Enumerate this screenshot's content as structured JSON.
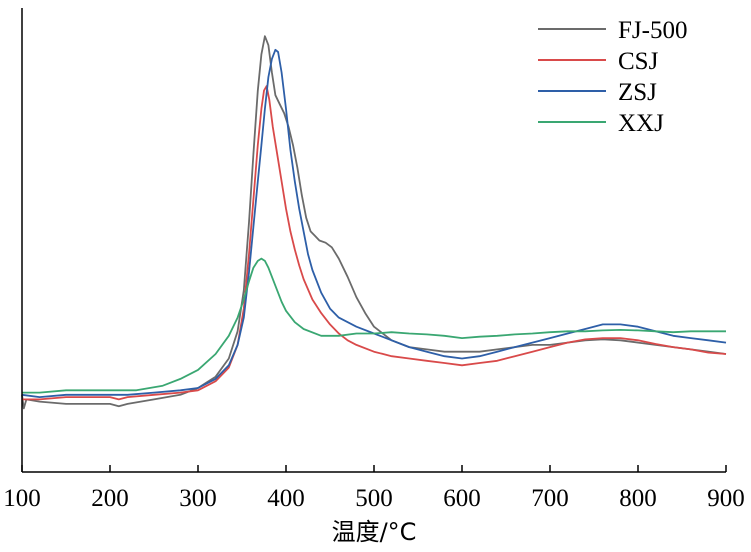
{
  "chart_data": {
    "type": "line",
    "title": "",
    "xlabel": "温度/°C",
    "ylabel": "",
    "xlim": [
      100,
      900
    ],
    "ylim": [
      0,
      100
    ],
    "x_ticks": [
      "100",
      "200",
      "300",
      "400",
      "500",
      "600",
      "700",
      "800",
      "900"
    ],
    "y_ticks_shown": false,
    "grid": false,
    "legend_position": "top-right",
    "series": [
      {
        "name": "FJ-500",
        "color": "#6b6b6b",
        "points": [
          [
            100,
            17
          ],
          [
            102,
            14
          ],
          [
            105,
            16
          ],
          [
            120,
            15.5
          ],
          [
            150,
            15
          ],
          [
            200,
            15
          ],
          [
            210,
            14.5
          ],
          [
            220,
            15
          ],
          [
            250,
            16
          ],
          [
            280,
            17
          ],
          [
            300,
            18.5
          ],
          [
            320,
            21
          ],
          [
            335,
            25
          ],
          [
            345,
            31
          ],
          [
            352,
            40
          ],
          [
            358,
            55
          ],
          [
            363,
            70
          ],
          [
            368,
            84
          ],
          [
            372,
            92
          ],
          [
            376,
            96
          ],
          [
            380,
            94
          ],
          [
            384,
            88
          ],
          [
            388,
            83
          ],
          [
            393,
            81
          ],
          [
            398,
            79
          ],
          [
            403,
            76
          ],
          [
            408,
            72
          ],
          [
            413,
            67
          ],
          [
            418,
            61
          ],
          [
            423,
            56
          ],
          [
            428,
            53
          ],
          [
            433,
            52
          ],
          [
            438,
            51
          ],
          [
            445,
            50.5
          ],
          [
            452,
            49.5
          ],
          [
            460,
            47
          ],
          [
            470,
            43
          ],
          [
            480,
            38.5
          ],
          [
            490,
            35
          ],
          [
            500,
            32
          ],
          [
            520,
            29
          ],
          [
            540,
            27.5
          ],
          [
            560,
            27
          ],
          [
            580,
            26.5
          ],
          [
            600,
            26.5
          ],
          [
            620,
            26.5
          ],
          [
            640,
            27
          ],
          [
            660,
            27.5
          ],
          [
            680,
            28
          ],
          [
            700,
            28
          ],
          [
            720,
            28.5
          ],
          [
            740,
            29
          ],
          [
            760,
            29.2
          ],
          [
            780,
            29
          ],
          [
            800,
            28.5
          ],
          [
            820,
            28
          ],
          [
            840,
            27.5
          ],
          [
            860,
            27
          ],
          [
            880,
            26.5
          ],
          [
            900,
            26
          ]
        ]
      },
      {
        "name": "CSJ",
        "color": "#d94a4a",
        "points": [
          [
            100,
            16
          ],
          [
            120,
            16
          ],
          [
            150,
            16.5
          ],
          [
            200,
            16.5
          ],
          [
            210,
            16
          ],
          [
            220,
            16.5
          ],
          [
            250,
            17
          ],
          [
            280,
            17.5
          ],
          [
            300,
            18
          ],
          [
            320,
            20
          ],
          [
            335,
            23
          ],
          [
            345,
            28
          ],
          [
            352,
            36
          ],
          [
            358,
            48
          ],
          [
            363,
            60
          ],
          [
            368,
            72
          ],
          [
            372,
            80
          ],
          [
            375,
            84
          ],
          [
            378,
            85
          ],
          [
            381,
            82
          ],
          [
            385,
            76
          ],
          [
            390,
            70
          ],
          [
            395,
            64
          ],
          [
            400,
            58
          ],
          [
            405,
            53
          ],
          [
            410,
            49
          ],
          [
            415,
            45.5
          ],
          [
            420,
            42.5
          ],
          [
            430,
            38
          ],
          [
            440,
            35
          ],
          [
            450,
            32.5
          ],
          [
            460,
            30.5
          ],
          [
            470,
            29
          ],
          [
            480,
            28
          ],
          [
            500,
            26.5
          ],
          [
            520,
            25.5
          ],
          [
            540,
            25
          ],
          [
            560,
            24.5
          ],
          [
            580,
            24
          ],
          [
            600,
            23.5
          ],
          [
            620,
            24
          ],
          [
            640,
            24.5
          ],
          [
            660,
            25.5
          ],
          [
            680,
            26.5
          ],
          [
            700,
            27.5
          ],
          [
            720,
            28.5
          ],
          [
            740,
            29.2
          ],
          [
            760,
            29.5
          ],
          [
            780,
            29.5
          ],
          [
            800,
            29
          ],
          [
            820,
            28.2
          ],
          [
            840,
            27.5
          ],
          [
            860,
            27
          ],
          [
            880,
            26.3
          ],
          [
            900,
            26
          ]
        ]
      },
      {
        "name": "ZSJ",
        "color": "#2e5fa8",
        "points": [
          [
            100,
            17
          ],
          [
            120,
            16.5
          ],
          [
            150,
            17
          ],
          [
            200,
            17
          ],
          [
            220,
            17
          ],
          [
            250,
            17.5
          ],
          [
            280,
            18
          ],
          [
            300,
            18.5
          ],
          [
            320,
            20.5
          ],
          [
            335,
            23.5
          ],
          [
            345,
            28
          ],
          [
            352,
            34
          ],
          [
            358,
            44
          ],
          [
            363,
            54
          ],
          [
            368,
            64
          ],
          [
            372,
            72
          ],
          [
            376,
            80
          ],
          [
            380,
            87
          ],
          [
            384,
            91
          ],
          [
            388,
            93
          ],
          [
            391,
            92.5
          ],
          [
            395,
            88
          ],
          [
            400,
            80
          ],
          [
            405,
            71
          ],
          [
            410,
            64
          ],
          [
            415,
            58
          ],
          [
            420,
            53
          ],
          [
            425,
            48
          ],
          [
            430,
            44.5
          ],
          [
            440,
            39.5
          ],
          [
            450,
            36
          ],
          [
            460,
            34
          ],
          [
            480,
            32
          ],
          [
            500,
            30.5
          ],
          [
            520,
            29
          ],
          [
            540,
            27.5
          ],
          [
            560,
            26.5
          ],
          [
            580,
            25.5
          ],
          [
            600,
            25
          ],
          [
            620,
            25.5
          ],
          [
            640,
            26.5
          ],
          [
            660,
            27.5
          ],
          [
            680,
            28.5
          ],
          [
            700,
            29.5
          ],
          [
            720,
            30.5
          ],
          [
            740,
            31.5
          ],
          [
            760,
            32.5
          ],
          [
            780,
            32.5
          ],
          [
            800,
            32
          ],
          [
            820,
            31
          ],
          [
            840,
            30
          ],
          [
            860,
            29.5
          ],
          [
            880,
            29
          ],
          [
            900,
            28.5
          ]
        ]
      },
      {
        "name": "XXJ",
        "color": "#3aa772",
        "points": [
          [
            100,
            17.5
          ],
          [
            120,
            17.5
          ],
          [
            150,
            18
          ],
          [
            200,
            18
          ],
          [
            230,
            18
          ],
          [
            260,
            19
          ],
          [
            280,
            20.5
          ],
          [
            300,
            22.5
          ],
          [
            320,
            26
          ],
          [
            335,
            30
          ],
          [
            345,
            34
          ],
          [
            352,
            38
          ],
          [
            358,
            42
          ],
          [
            363,
            45
          ],
          [
            368,
            46.5
          ],
          [
            372,
            47
          ],
          [
            376,
            46.5
          ],
          [
            380,
            45
          ],
          [
            385,
            42.5
          ],
          [
            390,
            40
          ],
          [
            395,
            37.5
          ],
          [
            400,
            35.5
          ],
          [
            410,
            33
          ],
          [
            420,
            31.5
          ],
          [
            440,
            30
          ],
          [
            460,
            30
          ],
          [
            480,
            30.5
          ],
          [
            500,
            30.5
          ],
          [
            520,
            30.8
          ],
          [
            540,
            30.5
          ],
          [
            560,
            30.3
          ],
          [
            580,
            30
          ],
          [
            600,
            29.5
          ],
          [
            620,
            29.8
          ],
          [
            640,
            30
          ],
          [
            660,
            30.3
          ],
          [
            680,
            30.5
          ],
          [
            700,
            30.8
          ],
          [
            720,
            31
          ],
          [
            740,
            31
          ],
          [
            760,
            31.2
          ],
          [
            780,
            31.3
          ],
          [
            800,
            31.2
          ],
          [
            820,
            31
          ],
          [
            840,
            30.8
          ],
          [
            860,
            31
          ],
          [
            880,
            31
          ],
          [
            900,
            31
          ]
        ]
      }
    ]
  }
}
